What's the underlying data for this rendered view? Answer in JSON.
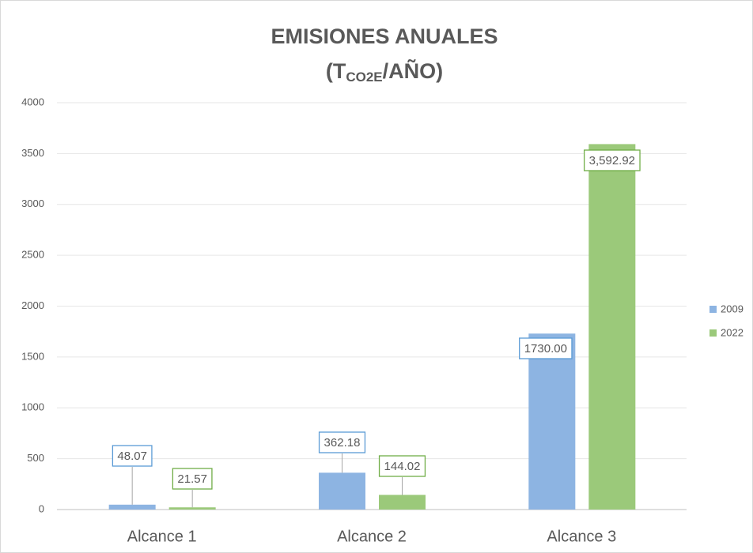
{
  "chart_data": {
    "type": "bar",
    "title": "EMISIONES ANUALES",
    "subtitle": {
      "prefix": "(T",
      "subscript": "CO2E",
      "suffix": "/AÑO)"
    },
    "categories": [
      "Alcance 1",
      "Alcance 2",
      "Alcance 3"
    ],
    "series": [
      {
        "name": "2009",
        "color": "#8db4e2",
        "values": [
          48.07,
          362.18,
          1730
        ],
        "value_labels": [
          "48.07",
          "362.18",
          "1730.00"
        ]
      },
      {
        "name": "2022",
        "color": "#9bc97a",
        "values": [
          21.57,
          144.02,
          3592.92
        ],
        "value_labels": [
          "21.57",
          "144.02",
          "3,592.92"
        ]
      }
    ],
    "ylim": [
      0,
      4000
    ],
    "yticks": [
      0,
      500,
      1000,
      1500,
      2000,
      2500,
      3000,
      3500,
      4000
    ],
    "grid": true,
    "legend": "right"
  }
}
